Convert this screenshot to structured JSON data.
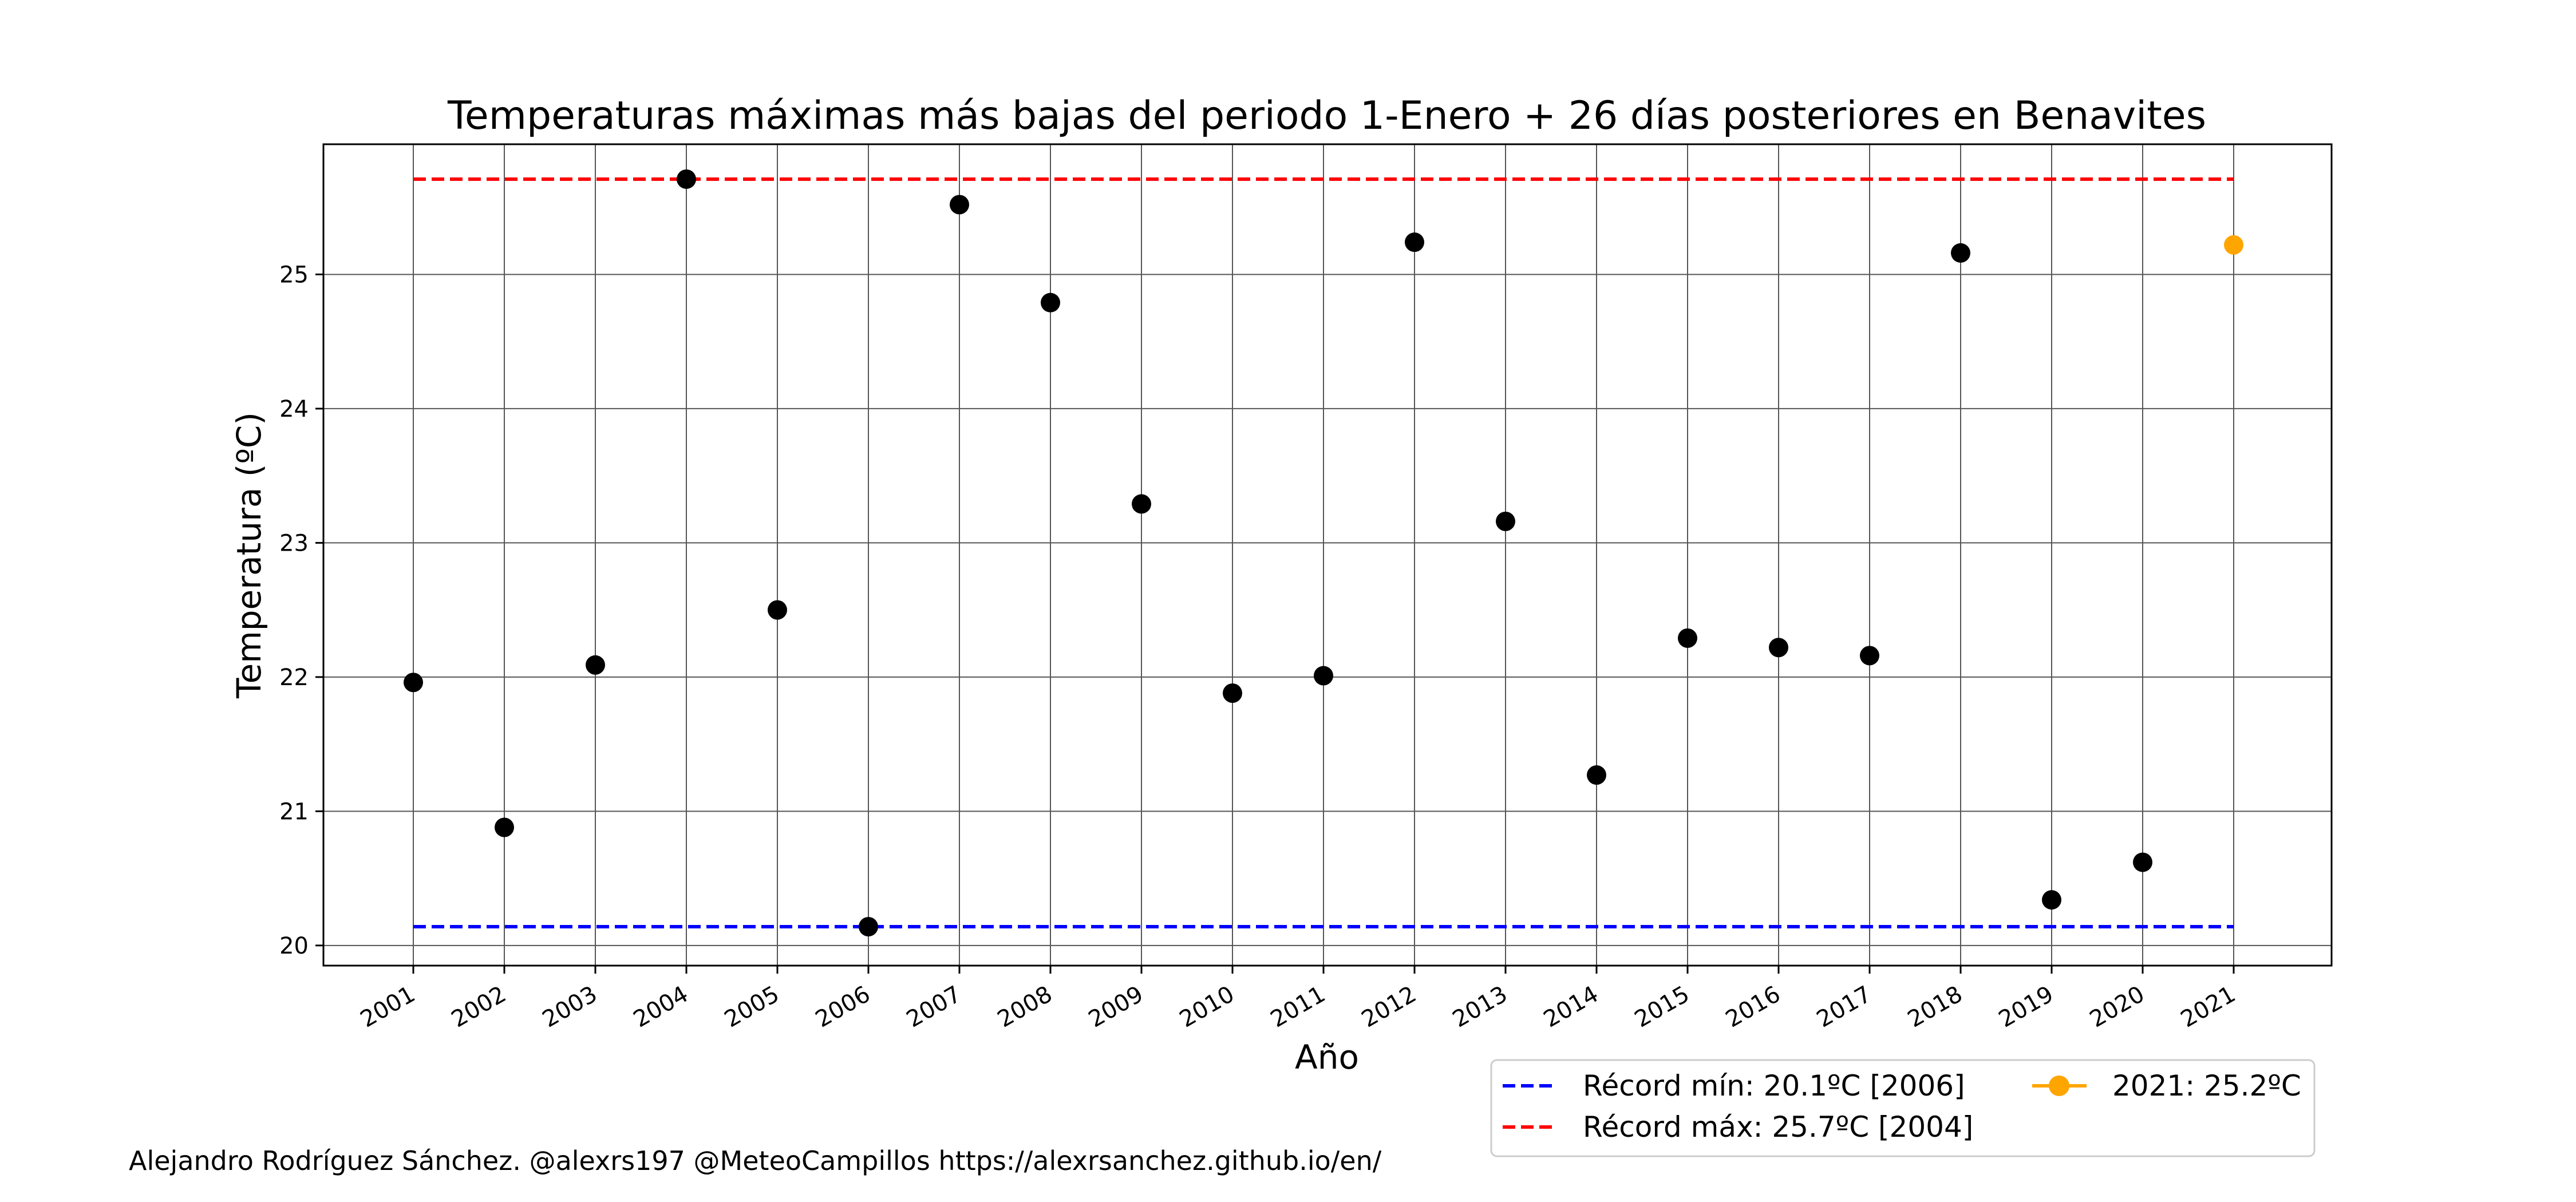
{
  "chart_data": {
    "type": "scatter",
    "title": "Temperaturas máximas más bajas del periodo 1-Enero + 26 días posteriores en Benavites",
    "xlabel": "Año",
    "ylabel": "Temperatura (ºC)",
    "ylim": [
      19.85,
      25.97
    ],
    "yticks": [
      "20",
      "21",
      "22",
      "23",
      "24",
      "25"
    ],
    "categories": [
      "2001",
      "2002",
      "2003",
      "2004",
      "2005",
      "2006",
      "2007",
      "2008",
      "2009",
      "2010",
      "2011",
      "2012",
      "2013",
      "2014",
      "2015",
      "2016",
      "2017",
      "2018",
      "2019",
      "2020",
      "2021"
    ],
    "series": [
      {
        "values": [
          21.96,
          20.88,
          22.09,
          25.71,
          22.5,
          20.14,
          25.52,
          24.79,
          23.29,
          21.88,
          22.01,
          25.24,
          23.16,
          21.27,
          22.29,
          22.22,
          22.16,
          25.16,
          20.34,
          20.62
        ],
        "color": "#000000"
      },
      {
        "name": "2021: 25.2ºC",
        "values": [
          null,
          null,
          null,
          null,
          null,
          null,
          null,
          null,
          null,
          null,
          null,
          null,
          null,
          null,
          null,
          null,
          null,
          null,
          null,
          null,
          25.22
        ],
        "color": "#ffa500"
      }
    ],
    "reference_lines": [
      {
        "name": "Récord mín: 20.1ºC [2006]",
        "value": 20.14,
        "color": "#0000ff",
        "style": "dashed"
      },
      {
        "name": "Récord máx: 25.7ºC [2004]",
        "value": 25.71,
        "color": "#ff0000",
        "style": "dashed"
      }
    ],
    "grid": true,
    "legend_position": "lower-right, below plot"
  },
  "credit": "Alejandro Rodríguez Sánchez. @alexrs197 @MeteoCampillos   https://alexrsanchez.github.io/en/"
}
